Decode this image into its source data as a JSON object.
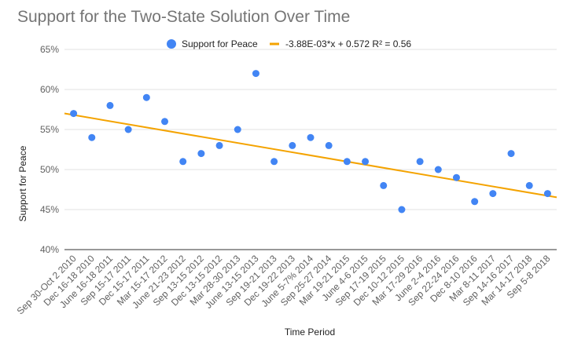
{
  "chart_data": {
    "type": "scatter",
    "title": "Support for the Two-State Solution Over Time",
    "xlabel": "Time Period",
    "ylabel": "Support for Peace",
    "ylim": [
      0.4,
      0.65
    ],
    "ytick_labels": [
      "40%",
      "45%",
      "50%",
      "55%",
      "60%",
      "65%"
    ],
    "ytick_values": [
      0.4,
      0.45,
      0.5,
      0.55,
      0.6,
      0.65
    ],
    "grid": true,
    "legend_position": "top",
    "categories": [
      "Sep 30-Oct 2 2010",
      "Dec 16-18 2010",
      "June 16-18 2011",
      "Sep 15-17 2011",
      "Dec 15-17 2011",
      "Mar 15-17 2012",
      "June 21-23 2012",
      "Sep 13-15 2012",
      "Dec 13-15 2012",
      "Mar 28-30 2013",
      "June 13-15 2013",
      "Sep 19-21 2013",
      "Dec 19-22 2013",
      "June 5-7% 2014",
      "Sep 25-27 2014",
      "Mar 19-21 2015",
      "June 4-6 2015",
      "Sep 17-19 2015",
      "Dec 10-12 2015",
      "Mar 17-29 2016",
      "June 2-4 2016",
      "Sep 22-24 2016",
      "Dec 8-10 2016",
      "Mar 8-11 2017",
      "Sep 14-16 2017",
      "Mar 14-17 2018",
      "Sep 5-8 2018"
    ],
    "series": [
      {
        "name": "Support for Peace",
        "color": "#4285F4",
        "values": [
          0.57,
          0.54,
          0.58,
          0.55,
          0.59,
          0.56,
          0.51,
          0.52,
          0.53,
          0.55,
          0.62,
          0.51,
          0.53,
          0.54,
          0.53,
          0.51,
          0.51,
          0.48,
          0.45,
          0.51,
          0.5,
          0.49,
          0.46,
          0.47,
          0.52,
          0.48,
          0.47
        ]
      }
    ],
    "trendline": {
      "label": "-3.88E-03*x + 0.572 R² = 0.56",
      "color": "#F4A300",
      "slope": -0.00388,
      "intercept": 0.572,
      "r_squared": 0.56
    }
  }
}
